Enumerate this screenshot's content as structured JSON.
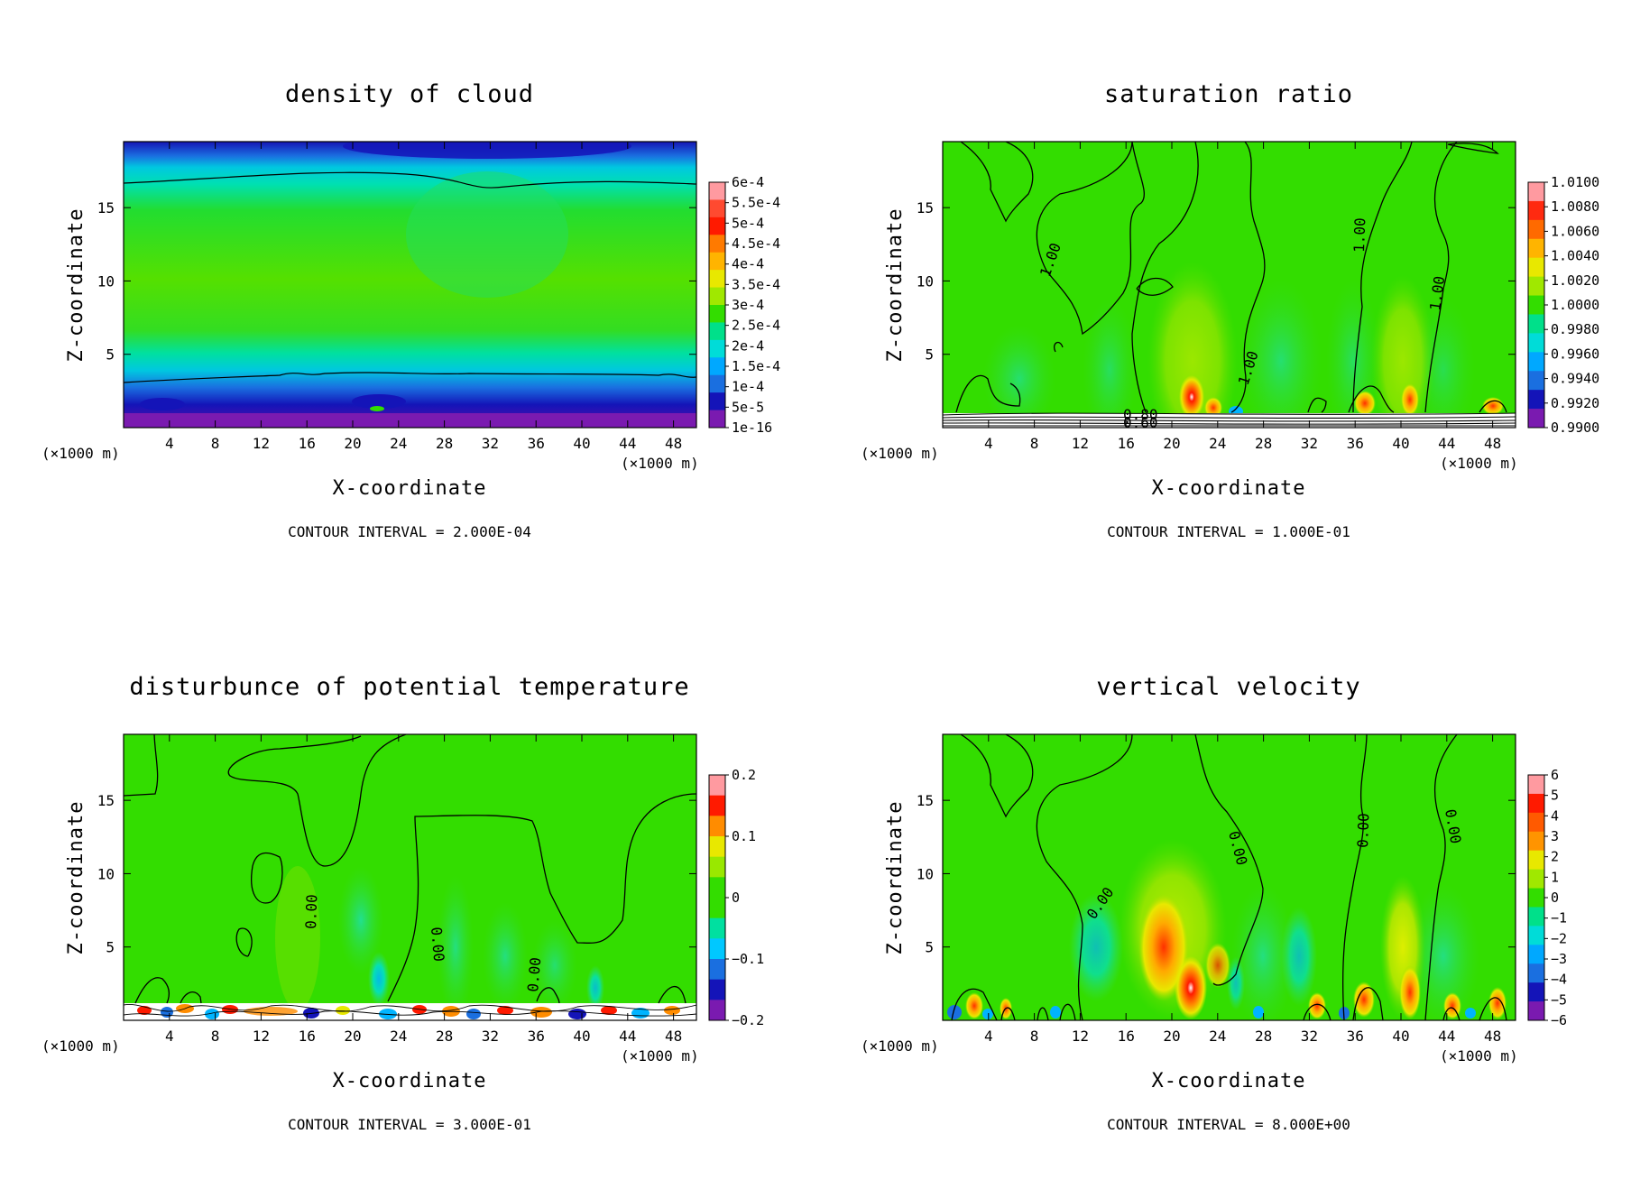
{
  "figure": {
    "panels": [
      {
        "id": "cloud",
        "title": "density of cloud",
        "xlabel": "X-coordinate",
        "ylabel": "Z-coordinate",
        "x_unit_left": "(×1000 m)",
        "x_unit_right": "(×1000 m)",
        "contour_interval": "CONTOUR INTERVAL = 2.000E-04",
        "x_ticks": [
          "4",
          "8",
          "12",
          "16",
          "20",
          "24",
          "28",
          "32",
          "36",
          "40",
          "44",
          "48"
        ],
        "y_ticks": [
          "5",
          "10",
          "15"
        ],
        "colorbar_labels": [
          "6e-4",
          "5.5e-4",
          "5e-4",
          "4.5e-4",
          "4e-4",
          "3.5e-4",
          "3e-4",
          "2.5e-4",
          "2e-4",
          "1.5e-4",
          "1e-4",
          "5e-5",
          "1e-16"
        ],
        "contour_labels": []
      },
      {
        "id": "saturation",
        "title": "saturation ratio",
        "xlabel": "X-coordinate",
        "ylabel": "Z-coordinate",
        "x_unit_left": "(×1000 m)",
        "x_unit_right": "(×1000 m)",
        "contour_interval": "CONTOUR INTERVAL = 1.000E-01",
        "x_ticks": [
          "4",
          "8",
          "12",
          "16",
          "20",
          "24",
          "28",
          "32",
          "36",
          "40",
          "44",
          "48"
        ],
        "y_ticks": [
          "5",
          "10",
          "15"
        ],
        "colorbar_labels": [
          "1.0100",
          "1.0080",
          "1.0060",
          "1.0040",
          "1.0020",
          "1.0000",
          "0.9980",
          "0.9960",
          "0.9940",
          "0.9920",
          "0.9900"
        ],
        "contour_labels": [
          "1.00",
          "1.00",
          "1.00",
          "1.00",
          "0.80",
          "0.60"
        ]
      },
      {
        "id": "theta",
        "title": "disturbunce of potential temperature",
        "xlabel": "X-coordinate",
        "ylabel": "Z-coordinate",
        "x_unit_left": "(×1000 m)",
        "x_unit_right": "(×1000 m)",
        "contour_interval": "CONTOUR INTERVAL = 3.000E-01",
        "x_ticks": [
          "4",
          "8",
          "12",
          "16",
          "20",
          "24",
          "28",
          "32",
          "36",
          "40",
          "44",
          "48"
        ],
        "y_ticks": [
          "5",
          "10",
          "15"
        ],
        "colorbar_labels": [
          "0.2",
          "0.1",
          "0",
          "−0.1",
          "−0.2"
        ],
        "contour_labels": [
          "0.00",
          "0.00",
          "0.00"
        ]
      },
      {
        "id": "wvel",
        "title": "vertical velocity",
        "xlabel": "X-coordinate",
        "ylabel": "Z-coordinate",
        "x_unit_left": "(×1000 m)",
        "x_unit_right": "(×1000 m)",
        "contour_interval": "CONTOUR INTERVAL = 8.000E+00",
        "x_ticks": [
          "4",
          "8",
          "12",
          "16",
          "20",
          "24",
          "28",
          "32",
          "36",
          "40",
          "44",
          "48"
        ],
        "y_ticks": [
          "5",
          "10",
          "15"
        ],
        "colorbar_labels": [
          "6",
          "5",
          "4",
          "3",
          "2",
          "1",
          "0",
          "−1",
          "−2",
          "−3",
          "−4",
          "−5",
          "−6"
        ],
        "contour_labels": [
          "0.00",
          "0.00",
          "0.00",
          "0.00"
        ]
      }
    ],
    "colors": {
      "green": "#33dd00",
      "cyan": "#00ddc8",
      "blue": "#1a6fe0",
      "darkblue": "#1414b8",
      "purple": "#7a1ab0",
      "yellow": "#e8e800",
      "orange": "#ff8c00",
      "red": "#ff1a00",
      "pink": "#ff9aa0"
    }
  },
  "chart_data": [
    {
      "type": "heatmap",
      "title": "density of cloud",
      "xlabel": "X-coordinate",
      "ylabel": "Z-coordinate",
      "x_unit": "(×1000 m)",
      "xlim": [
        0,
        50
      ],
      "ylim": [
        0,
        19.5
      ],
      "colorbar": [
        "1e-16",
        "5e-5",
        "1e-4",
        "1.5e-4",
        "2e-4",
        "2.5e-4",
        "3e-4",
        "3.5e-4",
        "4e-4",
        "4.5e-4",
        "5e-4",
        "5.5e-4",
        "6e-4"
      ],
      "contour_interval": 0.0002
    },
    {
      "type": "heatmap",
      "title": "saturation ratio",
      "xlabel": "X-coordinate",
      "ylabel": "Z-coordinate",
      "x_unit": "(×1000 m)",
      "xlim": [
        0,
        50
      ],
      "ylim": [
        0,
        19.5
      ],
      "colorbar": [
        "0.9900",
        "0.9920",
        "0.9940",
        "0.9960",
        "0.9980",
        "1.0000",
        "1.0020",
        "1.0040",
        "1.0060",
        "1.0080",
        "1.0100"
      ],
      "contour_interval": 0.1
    },
    {
      "type": "heatmap",
      "title": "disturbunce of potential temperature",
      "xlabel": "X-coordinate",
      "ylabel": "Z-coordinate",
      "x_unit": "(×1000 m)",
      "xlim": [
        0,
        50
      ],
      "ylim": [
        0,
        19.5
      ],
      "colorbar": [
        "−0.2",
        "−0.1",
        "0",
        "0.1",
        "0.2"
      ],
      "contour_interval": 0.3
    },
    {
      "type": "heatmap",
      "title": "vertical velocity",
      "xlabel": "X-coordinate",
      "ylabel": "Z-coordinate",
      "x_unit": "(×1000 m)",
      "xlim": [
        0,
        50
      ],
      "ylim": [
        0,
        19.5
      ],
      "colorbar": [
        "−6",
        "−5",
        "−4",
        "−3",
        "−2",
        "−1",
        "0",
        "1",
        "2",
        "3",
        "4",
        "5",
        "6"
      ],
      "contour_interval": 8.0
    }
  ]
}
